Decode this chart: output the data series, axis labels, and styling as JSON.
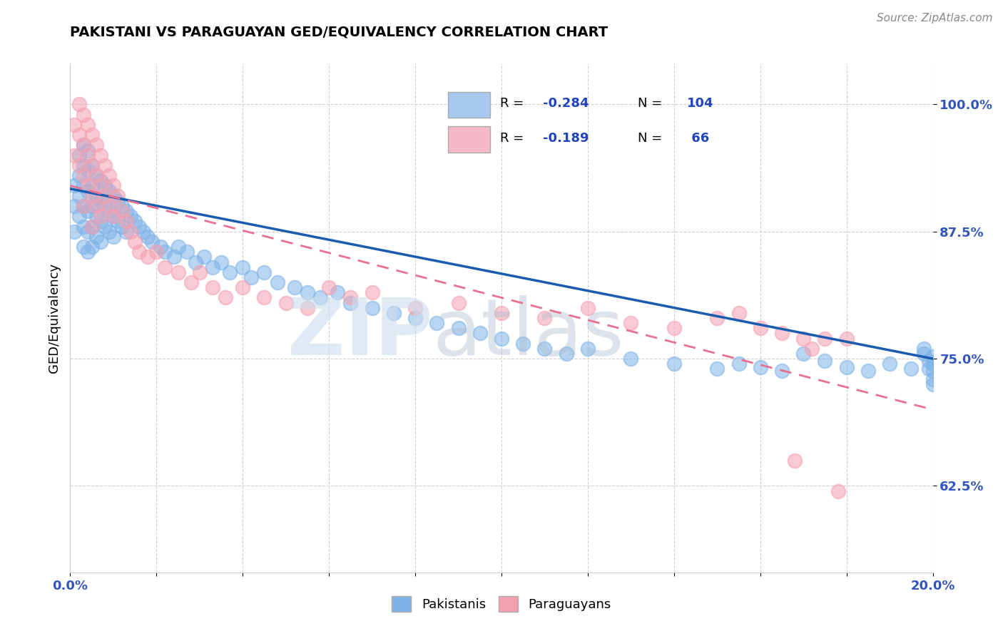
{
  "title": "PAKISTANI VS PARAGUAYAN GED/EQUIVALENCY CORRELATION CHART",
  "source": "Source: ZipAtlas.com",
  "ylabel": "GED/Equivalency",
  "xlim": [
    0.0,
    0.2
  ],
  "ylim": [
    0.54,
    1.04
  ],
  "xticks": [
    0.0,
    0.02,
    0.04,
    0.06,
    0.08,
    0.1,
    0.12,
    0.14,
    0.16,
    0.18,
    0.2
  ],
  "xticklabels": [
    "0.0%",
    "",
    "",
    "",
    "",
    "",
    "",
    "",
    "",
    "",
    "20.0%"
  ],
  "yticks": [
    0.625,
    0.75,
    0.875,
    1.0
  ],
  "yticklabels": [
    "62.5%",
    "75.0%",
    "87.5%",
    "100.0%"
  ],
  "blue_color": "#7EB3E8",
  "pink_color": "#F4A0B0",
  "trend_blue": "#1A5CB0",
  "trend_pink": "#E87090",
  "legend_blue_fill": "#A8C8F0",
  "legend_pink_fill": "#F4B8C8",
  "pakistani_x": [
    0.001,
    0.001,
    0.001,
    0.002,
    0.002,
    0.002,
    0.002,
    0.003,
    0.003,
    0.003,
    0.003,
    0.003,
    0.003,
    0.004,
    0.004,
    0.004,
    0.004,
    0.004,
    0.004,
    0.005,
    0.005,
    0.005,
    0.005,
    0.005,
    0.006,
    0.006,
    0.006,
    0.006,
    0.007,
    0.007,
    0.007,
    0.007,
    0.008,
    0.008,
    0.008,
    0.009,
    0.009,
    0.009,
    0.01,
    0.01,
    0.01,
    0.011,
    0.011,
    0.012,
    0.012,
    0.013,
    0.013,
    0.014,
    0.015,
    0.016,
    0.017,
    0.018,
    0.019,
    0.021,
    0.022,
    0.024,
    0.025,
    0.027,
    0.029,
    0.031,
    0.033,
    0.035,
    0.037,
    0.04,
    0.042,
    0.045,
    0.048,
    0.052,
    0.055,
    0.058,
    0.062,
    0.065,
    0.07,
    0.075,
    0.08,
    0.085,
    0.09,
    0.095,
    0.1,
    0.105,
    0.11,
    0.115,
    0.12,
    0.13,
    0.14,
    0.15,
    0.155,
    0.16,
    0.165,
    0.17,
    0.175,
    0.18,
    0.185,
    0.19,
    0.195,
    0.198,
    0.198,
    0.199,
    0.199,
    0.2,
    0.2,
    0.2,
    0.2,
    0.2
  ],
  "pakistani_y": [
    0.92,
    0.9,
    0.875,
    0.95,
    0.93,
    0.91,
    0.89,
    0.96,
    0.94,
    0.92,
    0.9,
    0.88,
    0.86,
    0.955,
    0.935,
    0.915,
    0.895,
    0.875,
    0.855,
    0.94,
    0.92,
    0.9,
    0.88,
    0.86,
    0.93,
    0.91,
    0.89,
    0.87,
    0.925,
    0.905,
    0.885,
    0.865,
    0.92,
    0.9,
    0.88,
    0.915,
    0.895,
    0.875,
    0.91,
    0.89,
    0.87,
    0.905,
    0.885,
    0.9,
    0.88,
    0.895,
    0.875,
    0.89,
    0.885,
    0.88,
    0.875,
    0.87,
    0.865,
    0.86,
    0.855,
    0.85,
    0.86,
    0.855,
    0.845,
    0.85,
    0.84,
    0.845,
    0.835,
    0.84,
    0.83,
    0.835,
    0.825,
    0.82,
    0.815,
    0.81,
    0.815,
    0.805,
    0.8,
    0.795,
    0.79,
    0.785,
    0.78,
    0.775,
    0.77,
    0.765,
    0.76,
    0.755,
    0.76,
    0.75,
    0.745,
    0.74,
    0.745,
    0.742,
    0.738,
    0.755,
    0.748,
    0.742,
    0.738,
    0.745,
    0.74,
    0.76,
    0.755,
    0.748,
    0.74,
    0.752,
    0.745,
    0.738,
    0.73,
    0.725
  ],
  "paraguayan_x": [
    0.001,
    0.001,
    0.002,
    0.002,
    0.002,
    0.003,
    0.003,
    0.003,
    0.003,
    0.004,
    0.004,
    0.004,
    0.005,
    0.005,
    0.005,
    0.005,
    0.006,
    0.006,
    0.006,
    0.007,
    0.007,
    0.007,
    0.008,
    0.008,
    0.009,
    0.009,
    0.01,
    0.01,
    0.011,
    0.012,
    0.013,
    0.014,
    0.015,
    0.016,
    0.018,
    0.02,
    0.022,
    0.025,
    0.028,
    0.03,
    0.033,
    0.036,
    0.04,
    0.045,
    0.05,
    0.055,
    0.06,
    0.065,
    0.07,
    0.08,
    0.09,
    0.1,
    0.11,
    0.12,
    0.13,
    0.14,
    0.15,
    0.155,
    0.16,
    0.165,
    0.168,
    0.17,
    0.172,
    0.175,
    0.178,
    0.18
  ],
  "paraguayan_y": [
    0.98,
    0.95,
    1.0,
    0.97,
    0.94,
    0.99,
    0.96,
    0.93,
    0.9,
    0.98,
    0.95,
    0.92,
    0.97,
    0.94,
    0.91,
    0.88,
    0.96,
    0.93,
    0.9,
    0.95,
    0.92,
    0.89,
    0.94,
    0.91,
    0.93,
    0.9,
    0.92,
    0.89,
    0.91,
    0.895,
    0.885,
    0.875,
    0.865,
    0.855,
    0.85,
    0.855,
    0.84,
    0.835,
    0.825,
    0.835,
    0.82,
    0.81,
    0.82,
    0.81,
    0.805,
    0.8,
    0.82,
    0.81,
    0.815,
    0.8,
    0.805,
    0.795,
    0.79,
    0.8,
    0.785,
    0.78,
    0.79,
    0.795,
    0.78,
    0.775,
    0.65,
    0.77,
    0.76,
    0.77,
    0.62,
    0.77
  ],
  "pak_trend_x0": 0.0,
  "pak_trend_y0": 0.917,
  "pak_trend_x1": 0.2,
  "pak_trend_y1": 0.75,
  "par_trend_x0": 0.0,
  "par_trend_y0": 0.92,
  "par_trend_x1": 0.2,
  "par_trend_y1": 0.7
}
